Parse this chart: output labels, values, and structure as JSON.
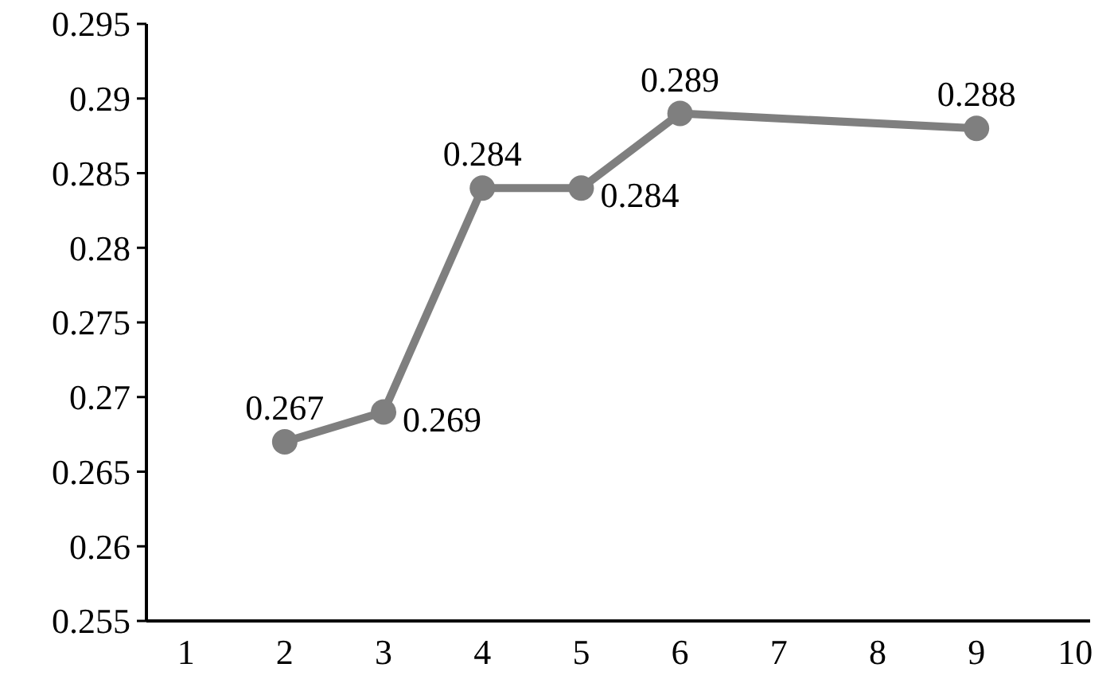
{
  "chart_data": {
    "type": "line",
    "x": [
      2,
      3,
      4,
      5,
      6,
      9
    ],
    "values": [
      0.267,
      0.269,
      0.284,
      0.284,
      0.289,
      0.288
    ],
    "color": "#7f7f7f",
    "xlim": [
      0.6,
      10.15
    ],
    "xticks": [
      1,
      2,
      3,
      4,
      5,
      6,
      7,
      8,
      9,
      10
    ],
    "ylim": [
      0.255,
      0.295
    ],
    "yticks": [
      0.255,
      0.26,
      0.265,
      0.27,
      0.275,
      0.28,
      0.285,
      0.29,
      0.295
    ],
    "marker": "circle",
    "data_labels": true,
    "grid": false
  }
}
